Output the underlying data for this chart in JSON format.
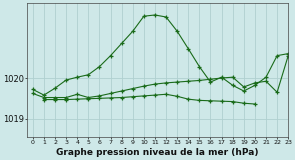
{
  "title": "Graphe pression niveau de la mer (hPa)",
  "bg_color": "#cee8e8",
  "grid_color": "#b0d0d0",
  "line_color": "#1a6b1a",
  "xlim": [
    -0.5,
    23
  ],
  "ylim": [
    1018.55,
    1021.85
  ],
  "yticks": [
    1019,
    1020
  ],
  "xtick_labels": [
    "0",
    "1",
    "2",
    "3",
    "4",
    "5",
    "6",
    "7",
    "8",
    "9",
    "10",
    "11",
    "12",
    "13",
    "14",
    "15",
    "16",
    "17",
    "18",
    "19",
    "20",
    "21",
    "22",
    "23"
  ],
  "line1_x": [
    0,
    1,
    2,
    3,
    4,
    5,
    6,
    7,
    8,
    9,
    10,
    11,
    12,
    13,
    14,
    15,
    16,
    17,
    18,
    19,
    20,
    21,
    22,
    23
  ],
  "line1_y": [
    1019.72,
    1019.58,
    1019.75,
    1019.95,
    1020.02,
    1020.08,
    1020.28,
    1020.55,
    1020.85,
    1021.15,
    1021.52,
    1021.55,
    1021.5,
    1021.15,
    1020.72,
    1020.28,
    1019.9,
    1020.02,
    1019.82,
    1019.68,
    1019.82,
    1020.02,
    1020.55,
    1020.6
  ],
  "line2_x": [
    0,
    1,
    2,
    3,
    4,
    5,
    6,
    7,
    8,
    9,
    10,
    11,
    12,
    13,
    14,
    15,
    16,
    17,
    18,
    19,
    20,
    21,
    22,
    23
  ],
  "line2_y": [
    1019.62,
    1019.52,
    1019.52,
    1019.52,
    1019.6,
    1019.52,
    1019.56,
    1019.62,
    1019.68,
    1019.74,
    1019.8,
    1019.85,
    1019.88,
    1019.9,
    1019.92,
    1019.94,
    1019.97,
    1020.0,
    1020.02,
    1019.78,
    1019.88,
    1019.92,
    1019.65,
    1020.55
  ],
  "line3_x": [
    1,
    2,
    3,
    4,
    5,
    6,
    7,
    8,
    9,
    10,
    11,
    12,
    13,
    14,
    15,
    16,
    17,
    18,
    19,
    20
  ],
  "line3_y": [
    1019.47,
    1019.47,
    1019.47,
    1019.48,
    1019.49,
    1019.5,
    1019.51,
    1019.52,
    1019.54,
    1019.56,
    1019.58,
    1019.6,
    1019.55,
    1019.48,
    1019.45,
    1019.44,
    1019.43,
    1019.42,
    1019.38,
    1019.36
  ]
}
